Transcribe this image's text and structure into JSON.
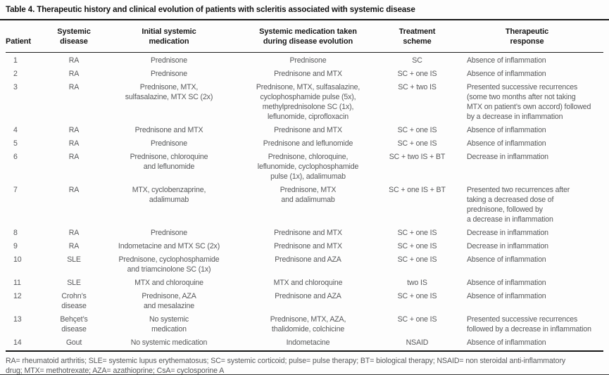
{
  "caption": "Table 4. Therapeutic history and clinical evolution of patients with scleritis associated with systemic disease",
  "columns": {
    "patient": "Patient",
    "disease": "Systemic\ndisease",
    "initial": "Initial systemic\nmedication",
    "evolution": "Systemic medication taken\nduring disease evolution",
    "scheme": "Treatment\nscheme",
    "response": "Therapeutic\nresponse"
  },
  "rows": [
    {
      "patient": "1",
      "disease": "RA",
      "initial": "Prednisone",
      "evolution": "Prednisone",
      "scheme": "SC",
      "response": "Absence of inflammation"
    },
    {
      "patient": "2",
      "disease": "RA",
      "initial": "Prednisone",
      "evolution": "Prednisone and MTX",
      "scheme": "SC + one IS",
      "response": "Absence of inflammation"
    },
    {
      "patient": "3",
      "disease": "RA",
      "initial": "Prednisone, MTX,\nsulfasalazine, MTX SC (2x)",
      "evolution": "Prednisone, MTX, sulfasalazine,\ncyclophosphamide pulse (5x),\nmethylprednisolone SC (1x),\nleflunomide, ciprofloxacin",
      "scheme": "SC + two IS",
      "response": "Presented successive recurrences\n(some two months after not taking\nMTX on patient’s own accord) followed\nby a decrease in inflammation"
    },
    {
      "patient": "4",
      "disease": "RA",
      "initial": "Prednisone and MTX",
      "evolution": "Prednisone and MTX",
      "scheme": "SC + one IS",
      "response": "Absence of inflammation"
    },
    {
      "patient": "5",
      "disease": "RA",
      "initial": "Prednisone",
      "evolution": "Prednisone and leflunomide",
      "scheme": "SC + one IS",
      "response": "Absence of inflammation"
    },
    {
      "patient": "6",
      "disease": "RA",
      "initial": "Prednisone, chloroquine\nand leflunomide",
      "evolution": "Prednisone, chloroquine,\nleflunomide, cyclophosphamide\npulse (1x), adalimumab",
      "scheme": "SC + two IS + BT",
      "response": "Decrease in inflammation"
    },
    {
      "patient": "7",
      "disease": "RA",
      "initial": "MTX, cyclobenzaprine,\nadalimumab",
      "evolution": "Prednisone, MTX\nand adalimumab",
      "scheme": "SC + one IS + BT",
      "response": "Presented two recurrences after\ntaking a decreased dose of\nprednisone, followed by\na decrease in inflammation"
    },
    {
      "patient": "8",
      "disease": "RA",
      "initial": "Prednisone",
      "evolution": "Prednisone and MTX",
      "scheme": "SC + one IS",
      "response": "Decrease in inflammation"
    },
    {
      "patient": "9",
      "disease": "RA",
      "initial": "Indometacine and MTX SC (2x)",
      "evolution": "Prednisone and MTX",
      "scheme": "SC + one IS",
      "response": "Decrease in inflammation"
    },
    {
      "patient": "10",
      "disease": "SLE",
      "initial": "Prednisone, cyclophosphamide\nand triamcinolone SC (1x)",
      "evolution": "Prednisone and AZA",
      "scheme": "SC + one IS",
      "response": "Absence of inflammation"
    },
    {
      "patient": "11",
      "disease": "SLE",
      "initial": "MTX and chloroquine",
      "evolution": "MTX and chloroquine",
      "scheme": "two IS",
      "response": "Absence of inflammation"
    },
    {
      "patient": "12",
      "disease": "Crohn’s\ndisease",
      "initial": "Prednisone, AZA\nand mesalazine",
      "evolution": "Prednisone and AZA",
      "scheme": "SC + one IS",
      "response": "Absence of inflammation"
    },
    {
      "patient": "13",
      "disease": "Behçet’s\ndisease",
      "initial": "No systemic\nmedication",
      "evolution": "Prednisone, MTX, AZA,\nthalidomide, colchicine",
      "scheme": "SC + one IS",
      "response": "Presented successive recurrences\nfollowed by a decrease in inflammation"
    },
    {
      "patient": "14",
      "disease": "Gout",
      "initial": "No systemic medication",
      "evolution": "Indometacine",
      "scheme": "NSAID",
      "response": "Absence of inflammation"
    }
  ],
  "footnote": "RA= rheumatoid arthritis; SLE= systemic lupus erythematosus; SC= systemic corticoid; pulse= pulse therapy; BT= biological therapy; NSAID= non steroidal anti-inflammatory\ndrug; MTX= methotrexate; AZA= azathioprine; CsA= cyclosporine A",
  "colors": {
    "ink": "#161616",
    "body_text": "#57585a",
    "background": "#fdfdfd"
  }
}
